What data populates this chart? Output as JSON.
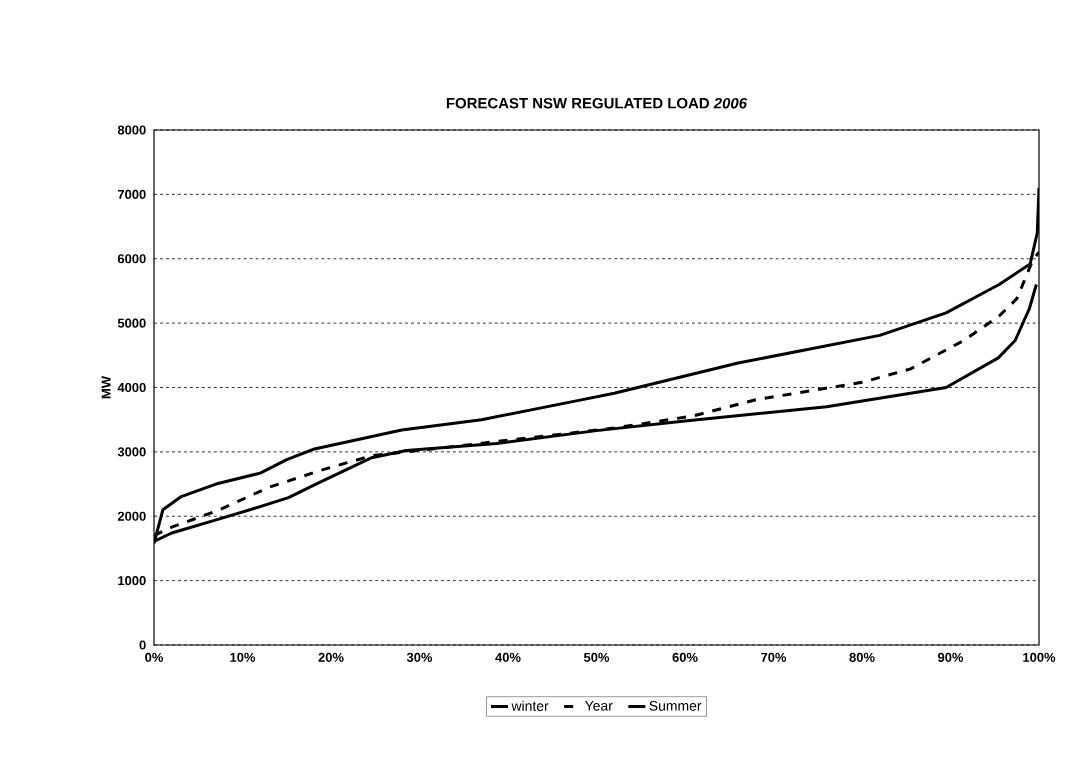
{
  "chart_data": {
    "type": "line",
    "title": "FORECAST NSW REGULATED LOAD *2006*",
    "ylabel": "MW",
    "xlim": [
      0,
      100
    ],
    "ylim": [
      0,
      8000
    ],
    "xticks": [
      {
        "value": 0,
        "label": "0%"
      },
      {
        "value": 10,
        "label": "10%"
      },
      {
        "value": 20,
        "label": "20%"
      },
      {
        "value": 30,
        "label": "30%"
      },
      {
        "value": 40,
        "label": "40%"
      },
      {
        "value": 50,
        "label": "50%"
      },
      {
        "value": 60,
        "label": "60%"
      },
      {
        "value": 70,
        "label": "70%"
      },
      {
        "value": 80,
        "label": "80%"
      },
      {
        "value": 90,
        "label": "90%"
      },
      {
        "value": 100,
        "label": "100%"
      }
    ],
    "yticks": [
      0,
      1000,
      2000,
      3000,
      4000,
      5000,
      6000,
      7000,
      8000
    ],
    "grid": "y",
    "legend": "bottom",
    "marker": "none",
    "series": [
      {
        "name": "winter",
        "color": "#000000",
        "line_style": "solid",
        "x": [
          0,
          1,
          3,
          7,
          12,
          15,
          18,
          28,
          37,
          48,
          52,
          66,
          82,
          89.5,
          95.5,
          99,
          99.8,
          100
        ],
        "values": [
          1580,
          2100,
          2300,
          2500,
          2670,
          2880,
          3040,
          3340,
          3500,
          3800,
          3910,
          4380,
          4810,
          5160,
          5600,
          5920,
          6400,
          7100
        ]
      },
      {
        "name": "Year",
        "color": "#000000",
        "line_style": "dashed",
        "x": [
          0,
          2,
          7.4,
          13,
          19,
          24.6,
          33,
          52,
          61,
          68,
          80,
          85.5,
          91.5,
          95.5,
          97.5,
          99.3,
          100
        ],
        "values": [
          1700,
          1830,
          2100,
          2450,
          2720,
          2940,
          3070,
          3370,
          3560,
          3810,
          4080,
          4290,
          4730,
          5110,
          5380,
          5980,
          6100
        ]
      },
      {
        "name": "Summer",
        "color": "#000000",
        "line_style": "solid",
        "x": [
          0,
          2,
          7.4,
          11.3,
          15.2,
          18.3,
          24.6,
          28.5,
          38.7,
          50,
          60,
          76,
          89.5,
          95.4,
          97.3,
          98.9,
          99.7
        ],
        "values": [
          1610,
          1740,
          1960,
          2120,
          2290,
          2500,
          2910,
          3020,
          3130,
          3330,
          3480,
          3700,
          4000,
          4460,
          4730,
          5220,
          5600
        ]
      }
    ]
  }
}
